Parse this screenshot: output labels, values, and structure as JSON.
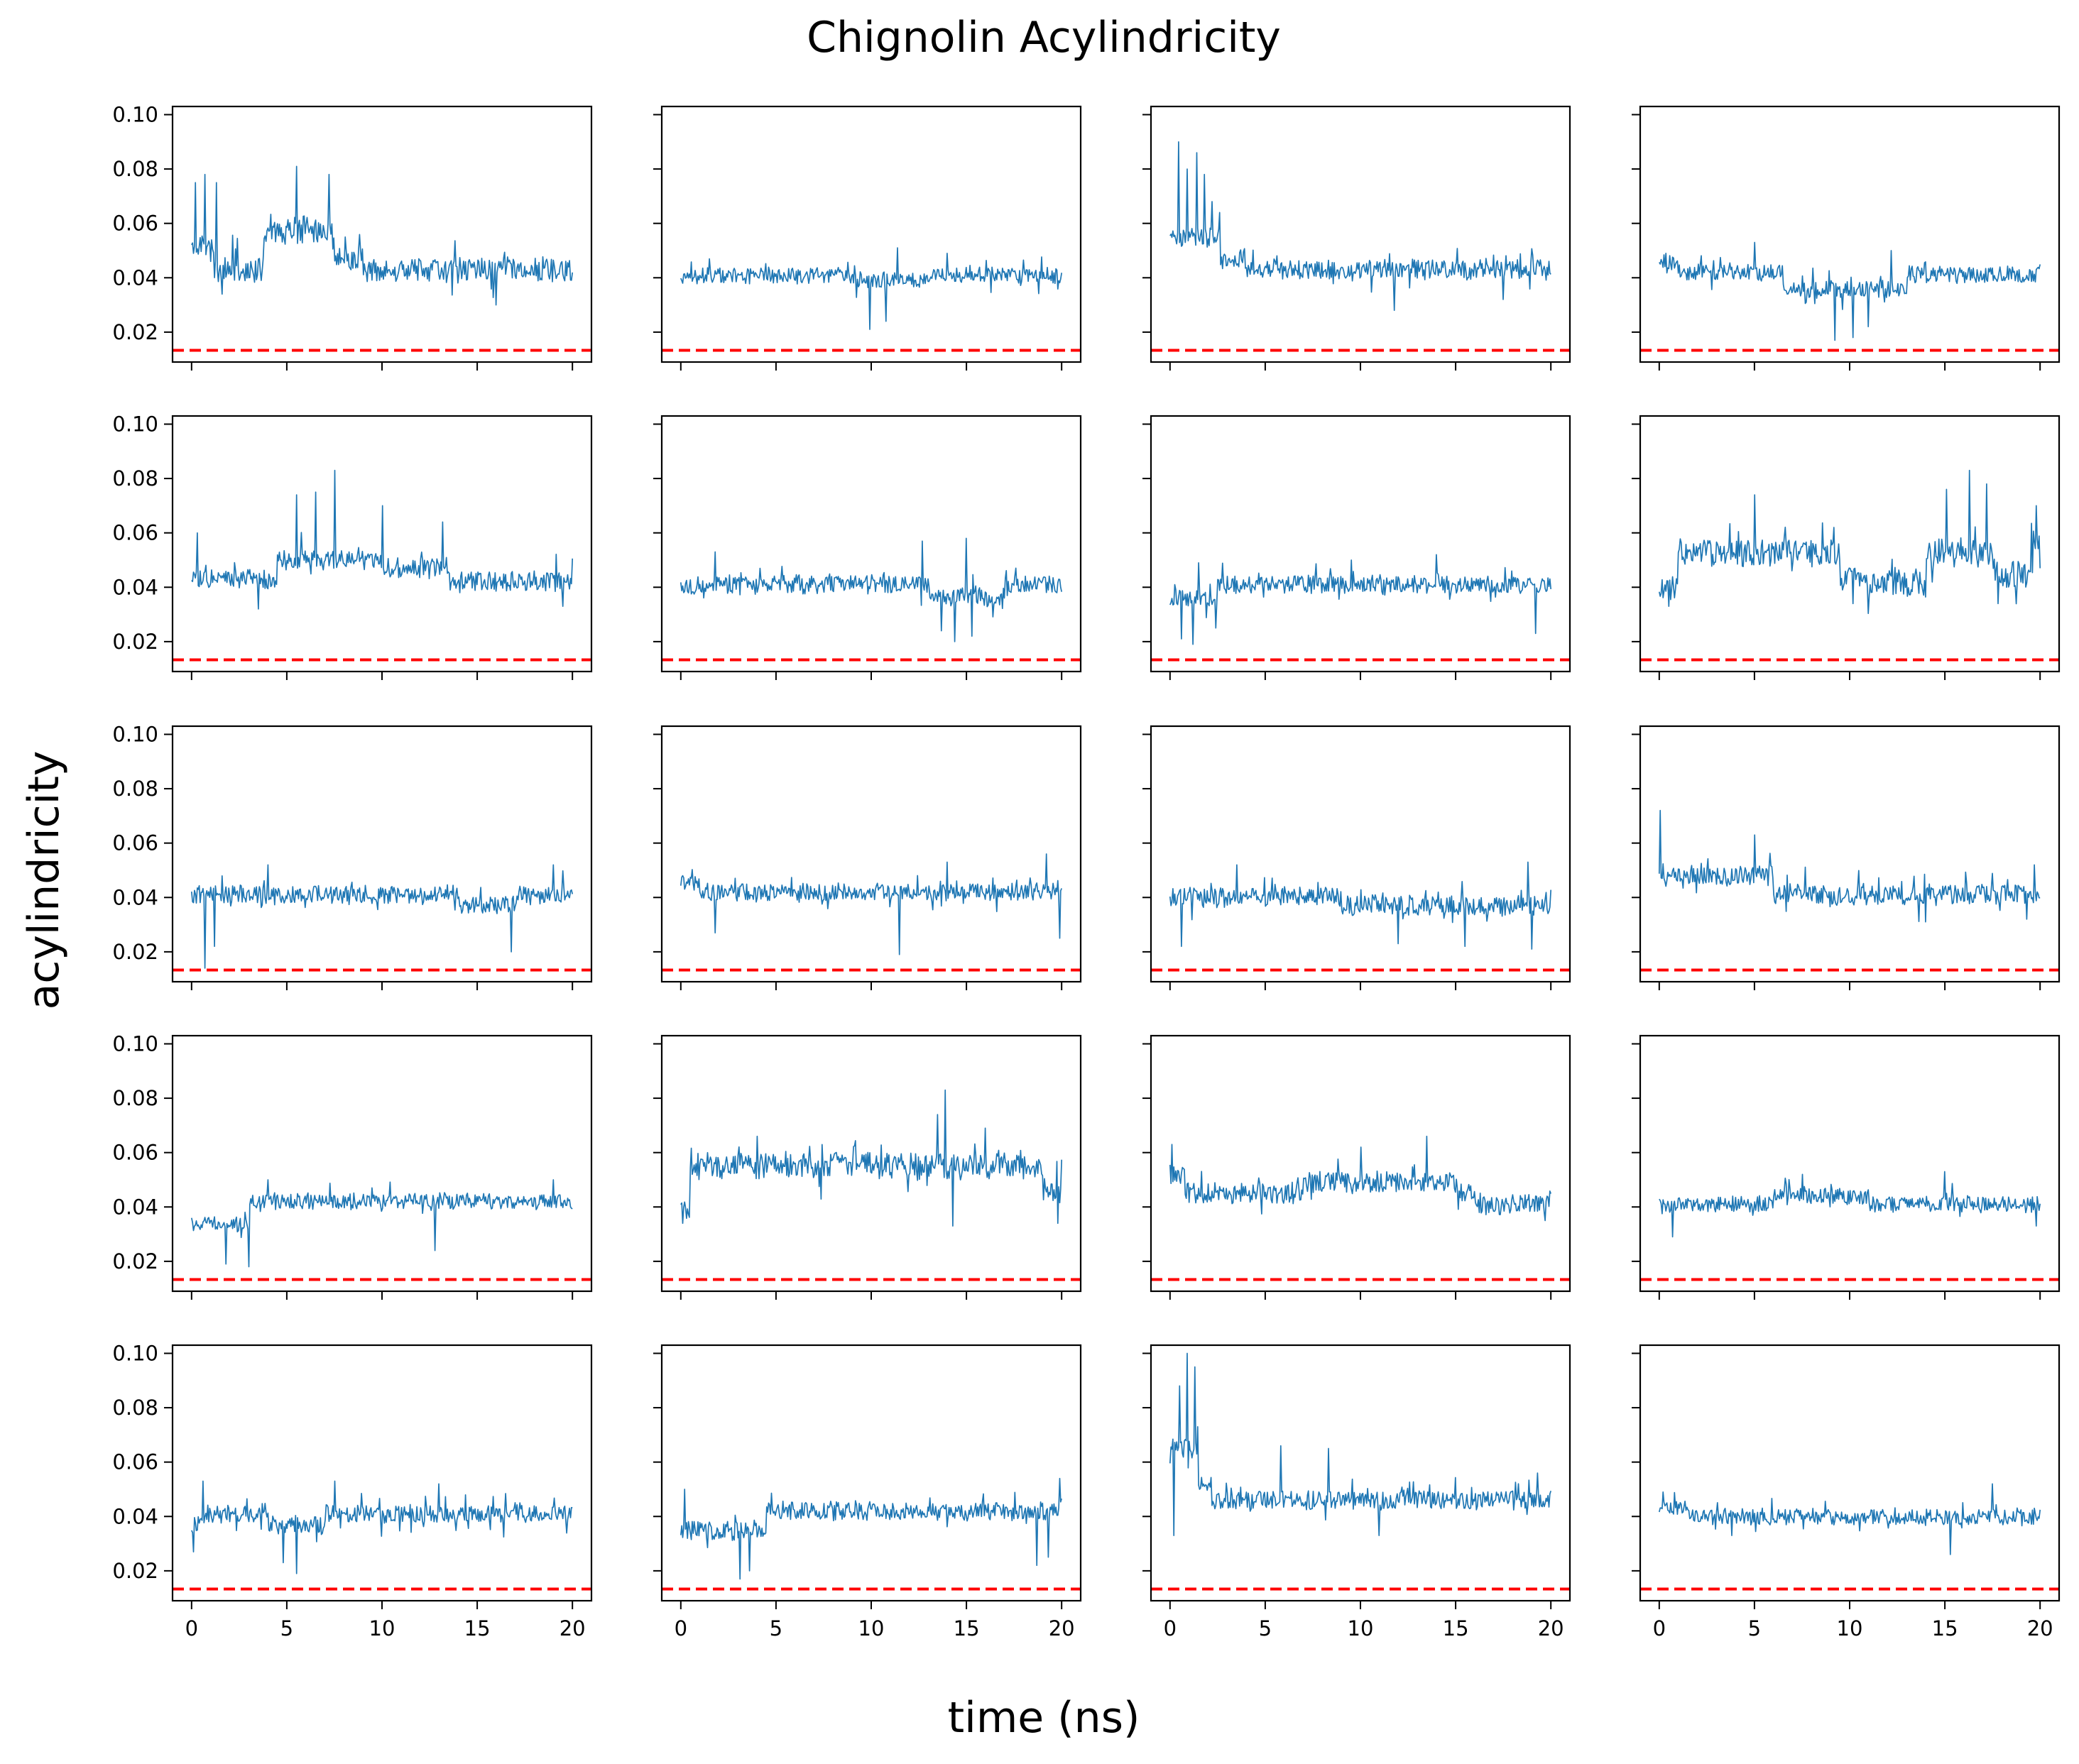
{
  "figure": {
    "title": "Chignolin Acylindricity",
    "xlabel": "time (ns)",
    "ylabel": "acylindricity"
  },
  "chart_data": {
    "type": "line",
    "layout": "grid",
    "rows": 5,
    "cols": 4,
    "title": "Chignolin Acylindricity",
    "xlabel": "time (ns)",
    "ylabel": "acylindricity",
    "xlim": [
      -1,
      21
    ],
    "ylim": [
      0.009,
      0.103
    ],
    "xticks": [
      0,
      5,
      10,
      15,
      20
    ],
    "xtick_labels": [
      "0",
      "5",
      "10",
      "15",
      "20"
    ],
    "yticks": [
      0.02,
      0.04,
      0.06,
      0.08,
      0.1
    ],
    "ytick_labels": [
      "0.02",
      "0.04",
      "0.06",
      "0.08",
      "0.10"
    ],
    "sharex": true,
    "sharey": true,
    "grid": false,
    "line_color": "#1f77b4",
    "reference_color": "#ff0000",
    "reference_style": "dashed",
    "reference_value": 0.0133,
    "n_points": 400,
    "panels": [
      {
        "row": 0,
        "col": 0,
        "seed": 11,
        "base": 0.043,
        "noise": 0.0042,
        "spike": 0.0035,
        "segments": [
          [
            0,
            1.2,
            0.052
          ],
          [
            3.8,
            7.5,
            0.057
          ],
          [
            7.5,
            9,
            0.047
          ]
        ],
        "peaks": [
          [
            0.2,
            0.075
          ],
          [
            0.7,
            0.078
          ],
          [
            1.3,
            0.075
          ],
          [
            5.5,
            0.081
          ],
          [
            7.2,
            0.078
          ]
        ],
        "lows": [
          [
            1.6,
            0.034
          ],
          [
            16,
            0.03
          ]
        ]
      },
      {
        "row": 0,
        "col": 1,
        "seed": 12,
        "base": 0.041,
        "noise": 0.0028,
        "spike": 0.0018,
        "segments": [
          [
            9,
            13,
            0.039
          ]
        ],
        "peaks": [
          [
            11.4,
            0.051
          ],
          [
            14,
            0.049
          ]
        ],
        "lows": [
          [
            9.9,
            0.021
          ],
          [
            10.8,
            0.024
          ]
        ]
      },
      {
        "row": 0,
        "col": 2,
        "seed": 13,
        "base": 0.043,
        "noise": 0.0034,
        "spike": 0.0025,
        "segments": [
          [
            0,
            2.6,
            0.055
          ],
          [
            2.6,
            4,
            0.047
          ]
        ],
        "peaks": [
          [
            0.45,
            0.09
          ],
          [
            1.4,
            0.086
          ],
          [
            0.9,
            0.08
          ],
          [
            1.8,
            0.078
          ],
          [
            2.2,
            0.068
          ],
          [
            2.6,
            0.064
          ]
        ],
        "lows": [
          [
            11.8,
            0.028
          ],
          [
            17.5,
            0.032
          ]
        ]
      },
      {
        "row": 0,
        "col": 3,
        "seed": 14,
        "base": 0.042,
        "noise": 0.003,
        "spike": 0.002,
        "segments": [
          [
            0,
            1,
            0.046
          ],
          [
            6.5,
            13,
            0.036
          ],
          [
            13,
            20,
            0.041
          ]
        ],
        "peaks": [
          [
            5,
            0.053
          ],
          [
            12.2,
            0.05
          ]
        ],
        "lows": [
          [
            9.2,
            0.017
          ],
          [
            10.2,
            0.018
          ],
          [
            11,
            0.022
          ]
        ]
      },
      {
        "row": 1,
        "col": 0,
        "seed": 21,
        "base": 0.043,
        "noise": 0.0035,
        "spike": 0.003,
        "segments": [
          [
            4.5,
            10,
            0.05
          ],
          [
            10,
            13.5,
            0.047
          ],
          [
            13.5,
            20,
            0.042
          ]
        ],
        "peaks": [
          [
            0.3,
            0.06
          ],
          [
            5.5,
            0.074
          ],
          [
            6.5,
            0.075
          ],
          [
            7.5,
            0.083
          ],
          [
            10,
            0.07
          ],
          [
            13.2,
            0.064
          ]
        ],
        "lows": [
          [
            3.5,
            0.032
          ],
          [
            19.5,
            0.033
          ]
        ]
      },
      {
        "row": 1,
        "col": 1,
        "seed": 22,
        "base": 0.041,
        "noise": 0.0033,
        "spike": 0.002,
        "segments": [
          [
            13,
            17,
            0.037
          ]
        ],
        "peaks": [
          [
            12.7,
            0.057
          ],
          [
            15,
            0.058
          ],
          [
            1.8,
            0.053
          ]
        ],
        "lows": [
          [
            13.7,
            0.024
          ],
          [
            14.4,
            0.02
          ],
          [
            15.3,
            0.022
          ]
        ]
      },
      {
        "row": 1,
        "col": 2,
        "seed": 23,
        "base": 0.041,
        "noise": 0.003,
        "spike": 0.002,
        "segments": [
          [
            0,
            2.5,
            0.036
          ]
        ],
        "peaks": [
          [
            1.5,
            0.049
          ],
          [
            9.5,
            0.05
          ],
          [
            14,
            0.052
          ]
        ],
        "lows": [
          [
            0.6,
            0.021
          ],
          [
            1.2,
            0.019
          ],
          [
            2.4,
            0.025
          ],
          [
            19.2,
            0.023
          ]
        ]
      },
      {
        "row": 1,
        "col": 3,
        "seed": 24,
        "base": 0.05,
        "noise": 0.005,
        "spike": 0.003,
        "segments": [
          [
            0,
            1,
            0.04
          ],
          [
            1,
            9.5,
            0.053
          ],
          [
            9.5,
            14,
            0.042
          ],
          [
            14,
            17.5,
            0.053
          ],
          [
            17.5,
            19.5,
            0.045
          ],
          [
            19.5,
            20,
            0.058
          ]
        ],
        "peaks": [
          [
            5,
            0.074
          ],
          [
            15.1,
            0.076
          ],
          [
            16.3,
            0.083
          ],
          [
            17.2,
            0.078
          ],
          [
            19.8,
            0.07
          ]
        ],
        "lows": [
          [
            0.5,
            0.033
          ],
          [
            10.2,
            0.034
          ],
          [
            17.8,
            0.034
          ]
        ]
      },
      {
        "row": 2,
        "col": 0,
        "seed": 31,
        "base": 0.041,
        "noise": 0.0033,
        "spike": 0.002,
        "segments": [
          [
            14,
            17,
            0.037
          ]
        ],
        "peaks": [
          [
            4,
            0.052
          ],
          [
            19,
            0.052
          ]
        ],
        "lows": [
          [
            0.7,
            0.014
          ],
          [
            1.2,
            0.022
          ],
          [
            16.8,
            0.02
          ]
        ]
      },
      {
        "row": 2,
        "col": 1,
        "seed": 32,
        "base": 0.042,
        "noise": 0.003,
        "spike": 0.002,
        "segments": [
          [
            0,
            1,
            0.045
          ]
        ],
        "peaks": [
          [
            0.1,
            0.048
          ],
          [
            19.2,
            0.056
          ],
          [
            14,
            0.053
          ]
        ],
        "lows": [
          [
            1.8,
            0.027
          ],
          [
            11.5,
            0.019
          ],
          [
            19.9,
            0.025
          ]
        ]
      },
      {
        "row": 2,
        "col": 2,
        "seed": 33,
        "base": 0.04,
        "noise": 0.0034,
        "spike": 0.0022,
        "segments": [
          [
            9,
            20,
            0.037
          ]
        ],
        "peaks": [
          [
            3.5,
            0.052
          ],
          [
            18.8,
            0.053
          ]
        ],
        "lows": [
          [
            0.6,
            0.022
          ],
          [
            12,
            0.023
          ],
          [
            15.5,
            0.022
          ],
          [
            19,
            0.021
          ]
        ]
      },
      {
        "row": 2,
        "col": 3,
        "seed": 34,
        "base": 0.043,
        "noise": 0.0035,
        "spike": 0.0025,
        "segments": [
          [
            0,
            6,
            0.048
          ],
          [
            6,
            20,
            0.041
          ]
        ],
        "peaks": [
          [
            0.05,
            0.072
          ],
          [
            5,
            0.063
          ],
          [
            19.7,
            0.052
          ]
        ],
        "lows": [
          [
            14,
            0.031
          ],
          [
            19.3,
            0.032
          ]
        ]
      },
      {
        "row": 3,
        "col": 0,
        "seed": 41,
        "base": 0.042,
        "noise": 0.0028,
        "spike": 0.002,
        "segments": [
          [
            0,
            3,
            0.034
          ]
        ],
        "peaks": [
          [
            4,
            0.05
          ],
          [
            19,
            0.05
          ]
        ],
        "lows": [
          [
            1.8,
            0.019
          ],
          [
            3,
            0.018
          ],
          [
            12.8,
            0.024
          ]
        ]
      },
      {
        "row": 3,
        "col": 1,
        "seed": 42,
        "base": 0.055,
        "noise": 0.0045,
        "spike": 0.003,
        "segments": [
          [
            0,
            0.5,
            0.04
          ],
          [
            19,
            20,
            0.045
          ]
        ],
        "peaks": [
          [
            13.9,
            0.083
          ],
          [
            13.5,
            0.074
          ],
          [
            16,
            0.069
          ],
          [
            4,
            0.066
          ]
        ],
        "lows": [
          [
            0.1,
            0.034
          ],
          [
            14.3,
            0.033
          ],
          [
            19.8,
            0.034
          ]
        ]
      },
      {
        "row": 3,
        "col": 2,
        "seed": 43,
        "base": 0.045,
        "noise": 0.0035,
        "spike": 0.0022,
        "segments": [
          [
            0,
            0.8,
            0.052
          ],
          [
            7,
            15,
            0.049
          ],
          [
            16,
            20,
            0.041
          ]
        ],
        "peaks": [
          [
            0.1,
            0.063
          ],
          [
            13.5,
            0.066
          ],
          [
            10,
            0.062
          ]
        ],
        "lows": [
          [
            19.7,
            0.035
          ]
        ]
      },
      {
        "row": 3,
        "col": 3,
        "seed": 44,
        "base": 0.041,
        "noise": 0.0028,
        "spike": 0.0018,
        "segments": [
          [
            6,
            11,
            0.044
          ]
        ],
        "peaks": [
          [
            15,
            0.053
          ],
          [
            7.5,
            0.052
          ]
        ],
        "lows": [
          [
            0.7,
            0.029
          ],
          [
            19.8,
            0.033
          ]
        ]
      },
      {
        "row": 4,
        "col": 0,
        "seed": 51,
        "base": 0.041,
        "noise": 0.003,
        "spike": 0.002,
        "segments": [
          [
            0,
            0.7,
            0.037
          ],
          [
            4,
            7,
            0.037
          ]
        ],
        "peaks": [
          [
            0.6,
            0.053
          ],
          [
            7.5,
            0.053
          ],
          [
            13,
            0.052
          ]
        ],
        "lows": [
          [
            0.1,
            0.027
          ],
          [
            5.5,
            0.019
          ],
          [
            4.8,
            0.023
          ]
        ]
      },
      {
        "row": 4,
        "col": 1,
        "seed": 52,
        "base": 0.041,
        "noise": 0.0033,
        "spike": 0.002,
        "segments": [
          [
            0,
            4.5,
            0.035
          ],
          [
            4.5,
            20,
            0.042
          ]
        ],
        "peaks": [
          [
            0.2,
            0.05
          ],
          [
            19.9,
            0.054
          ]
        ],
        "lows": [
          [
            3.1,
            0.017
          ],
          [
            3.6,
            0.02
          ],
          [
            18.7,
            0.022
          ],
          [
            19.3,
            0.025
          ]
        ]
      },
      {
        "row": 4,
        "col": 2,
        "seed": 53,
        "base": 0.046,
        "noise": 0.0033,
        "spike": 0.0022,
        "segments": [
          [
            0,
            1.5,
            0.065
          ],
          [
            1.5,
            2.2,
            0.052
          ]
        ],
        "peaks": [
          [
            0.5,
            0.088
          ],
          [
            0.9,
            0.1
          ],
          [
            1.3,
            0.095
          ],
          [
            5.8,
            0.066
          ],
          [
            8.3,
            0.065
          ]
        ],
        "lows": [
          [
            0.2,
            0.033
          ],
          [
            11,
            0.033
          ]
        ]
      },
      {
        "row": 4,
        "col": 3,
        "seed": 54,
        "base": 0.04,
        "noise": 0.0028,
        "spike": 0.0018,
        "segments": [
          [
            0,
            1.5,
            0.043
          ]
        ],
        "peaks": [
          [
            0.2,
            0.049
          ],
          [
            17.5,
            0.052
          ]
        ],
        "lows": [
          [
            15.3,
            0.026
          ],
          [
            3.8,
            0.033
          ]
        ]
      }
    ]
  }
}
